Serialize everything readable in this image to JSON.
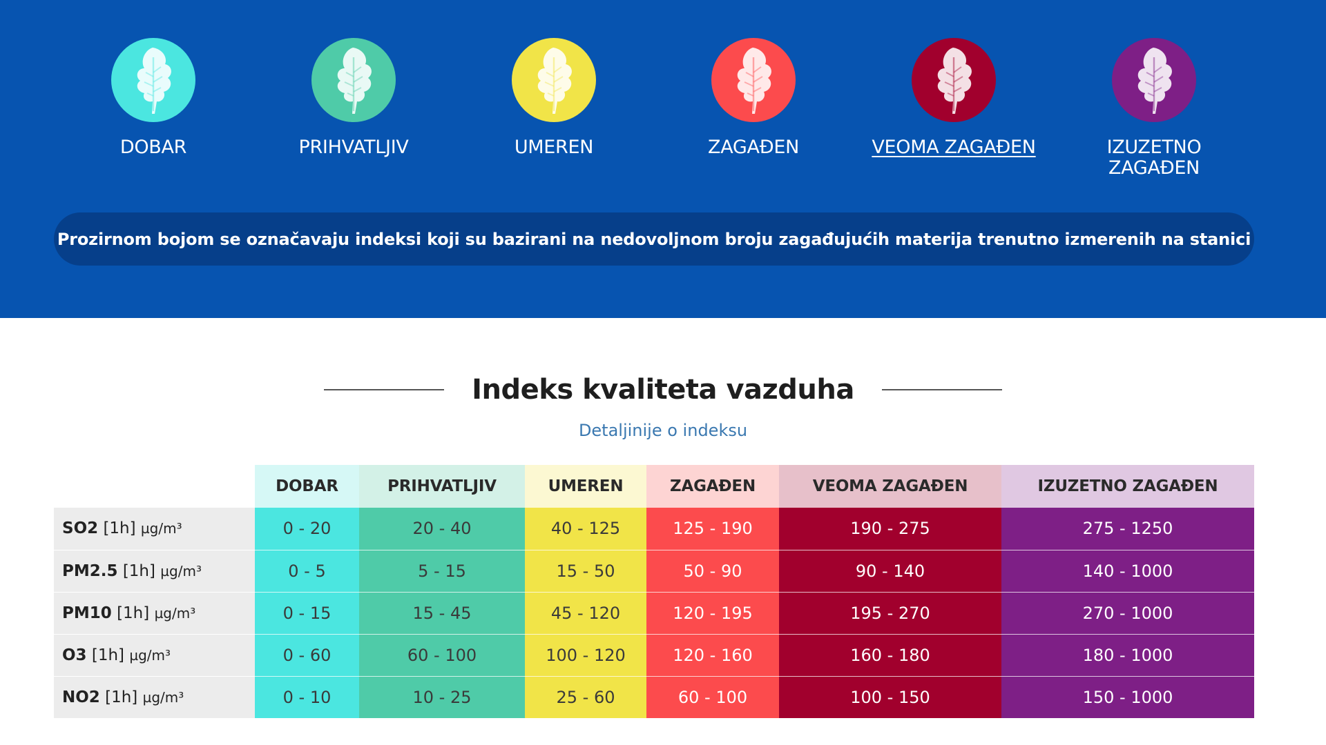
{
  "legend": {
    "items": [
      {
        "label": "DOBAR",
        "color": "#4be6e0",
        "active": false
      },
      {
        "label": "PRIHVATLJIV",
        "color": "#4fcba8",
        "active": false
      },
      {
        "label": "UMEREN",
        "color": "#f1e448",
        "active": false
      },
      {
        "label": "ZAGAĐEN",
        "color": "#fc4b4d",
        "active": false
      },
      {
        "label": "VEOMA ZAGAĐEN",
        "color": "#a1002d",
        "active": true
      },
      {
        "label": "IZUZETNO ZAGAĐEN",
        "color": "#7e1f86",
        "active": false
      }
    ],
    "icon": "leaf-icon"
  },
  "notice": "Prozirnom bojom se označavaju indeksi koji su bazirani na nedovoljnom broju zagađujućih materija trenutno izmerenih na stanici",
  "title": "Indeks kvaliteta vazduha",
  "details_link": "Detaljinije o indeksu",
  "table": {
    "headers": [
      "DOBAR",
      "PRIHVATLJIV",
      "UMEREN",
      "ZAGAĐEN",
      "VEOMA ZAGAĐEN",
      "IZUZETNO ZAGAĐEN"
    ],
    "header_colors": [
      "#d6f8f6",
      "#d3f1e7",
      "#fcf8d2",
      "#fdd4d3",
      "#e7c0ca",
      "#e0c8e2"
    ],
    "cell_colors": [
      "#4be6e0",
      "#4fcba8",
      "#f1e448",
      "#fc4b4d",
      "#a1002d",
      "#7e1f86"
    ],
    "rows": [
      {
        "name": "SO2",
        "avg": "[1h]",
        "unit": "µg/m³",
        "values": [
          "0 - 20",
          "20 - 40",
          "40 - 125",
          "125 - 190",
          "190 - 275",
          "275 - 1250"
        ]
      },
      {
        "name": "PM2.5",
        "avg": "[1h]",
        "unit": "µg/m³",
        "values": [
          "0 - 5",
          "5 - 15",
          "15 - 50",
          "50 - 90",
          "90 - 140",
          "140 - 1000"
        ]
      },
      {
        "name": "PM10",
        "avg": "[1h]",
        "unit": "µg/m³",
        "values": [
          "0 - 15",
          "15 - 45",
          "45 - 120",
          "120 - 195",
          "195 - 270",
          "270 - 1000"
        ]
      },
      {
        "name": "O3",
        "avg": "[1h]",
        "unit": "µg/m³",
        "values": [
          "0 - 60",
          "60 - 100",
          "100 - 120",
          "120 - 160",
          "160 - 180",
          "180 - 1000"
        ]
      },
      {
        "name": "NO2",
        "avg": "[1h]",
        "unit": "µg/m³",
        "values": [
          "0 - 10",
          "10 - 25",
          "25 - 60",
          "60 - 100",
          "100 - 150",
          "150 - 1000"
        ]
      }
    ]
  }
}
